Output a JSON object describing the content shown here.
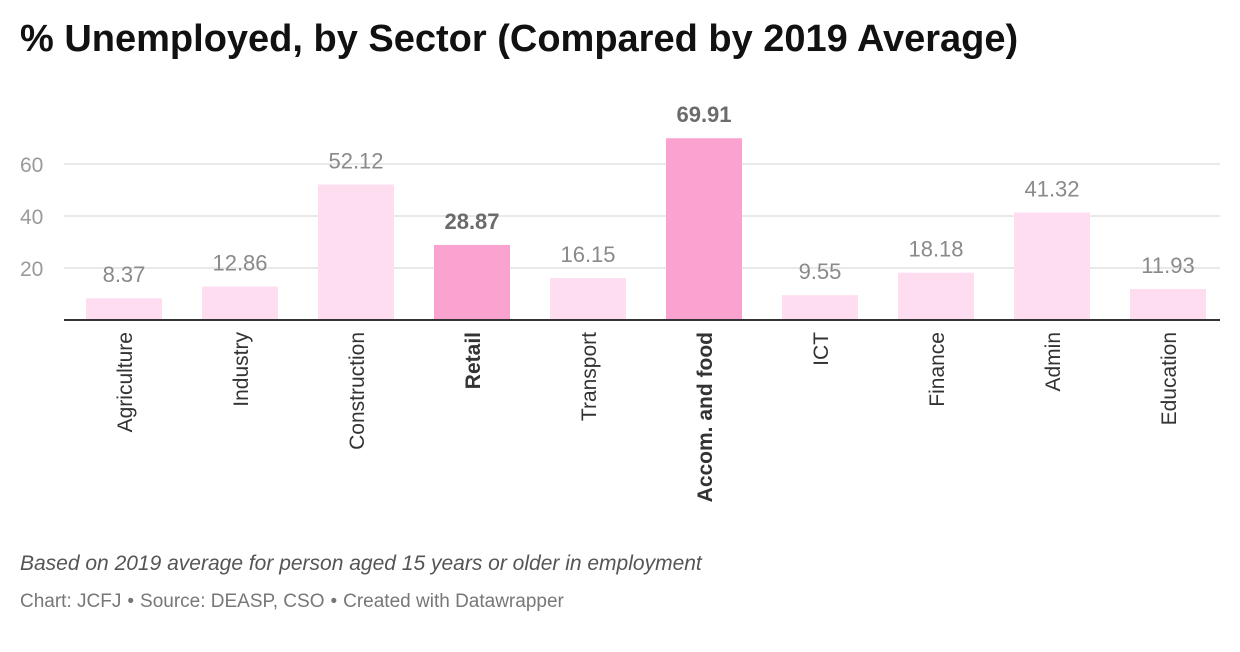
{
  "header": {
    "title": "% Unemployed, by Sector (Compared by 2019 Average)"
  },
  "chart_data": {
    "type": "bar",
    "title": "% Unemployed, by Sector (Compared by 2019 Average)",
    "xlabel": "",
    "ylabel": "",
    "ylim": [
      0,
      70
    ],
    "yticks": [
      20,
      40,
      60
    ],
    "grid": true,
    "categories": [
      "Agriculture",
      "Industry",
      "Construction",
      "Retail",
      "Transport",
      "Accom. and food",
      "ICT",
      "Finance",
      "Admin",
      "Education"
    ],
    "values": [
      8.37,
      12.86,
      52.12,
      28.87,
      16.15,
      69.91,
      9.55,
      18.18,
      41.32,
      11.93
    ],
    "value_labels": [
      "8.37",
      "12.86",
      "52.12",
      "28.87",
      "16.15",
      "69.91",
      "9.55",
      "18.18",
      "41.32",
      "11.93"
    ],
    "highlighted": [
      "Retail",
      "Accom. and food"
    ],
    "colors": {
      "bar": "#fdddef",
      "bar_highlight": "#fba3d0",
      "grid": "#e2e2e2",
      "axis": "#333333",
      "tick_label": "#9a9a9a",
      "value_label": "#8a8a8a",
      "value_label_highlight": "#6b6b6b",
      "category_label": "#333333"
    }
  },
  "footer": {
    "note": "Based on 2019 average for person aged 15 years or older in employment",
    "chart_credit": "Chart: JCFJ",
    "source": "Source: DEASP, CSO",
    "tool": "Created with Datawrapper",
    "separator": "•"
  }
}
